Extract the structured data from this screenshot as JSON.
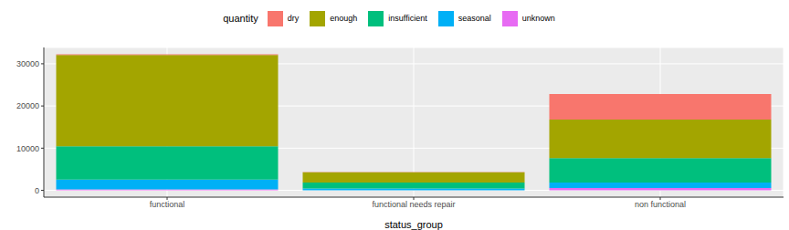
{
  "chart_data": {
    "type": "bar",
    "stacked": true,
    "x_label": "status_group",
    "legend_title": "quantity",
    "legend": "top",
    "grid": true,
    "categories": [
      "functional",
      "functional needs repair",
      "non functional"
    ],
    "series": [
      {
        "name": "dry",
        "color": "#F8766D",
        "values": [
          157,
          37,
          6052
        ]
      },
      {
        "name": "enough",
        "color": "#A3A500",
        "values": [
          21648,
          2400,
          9138
        ]
      },
      {
        "name": "insufficient",
        "color": "#00BF7D",
        "values": [
          7916,
          1450,
          5763
        ]
      },
      {
        "name": "seasonal",
        "color": "#00B0F6",
        "values": [
          2325,
          416,
          1309
        ]
      },
      {
        "name": "unknown",
        "color": "#E76BF3",
        "values": [
          213,
          10,
          566
        ]
      }
    ],
    "ylim": [
      -1613,
      33872
    ],
    "yticks": [
      0,
      10000,
      20000,
      30000
    ]
  }
}
